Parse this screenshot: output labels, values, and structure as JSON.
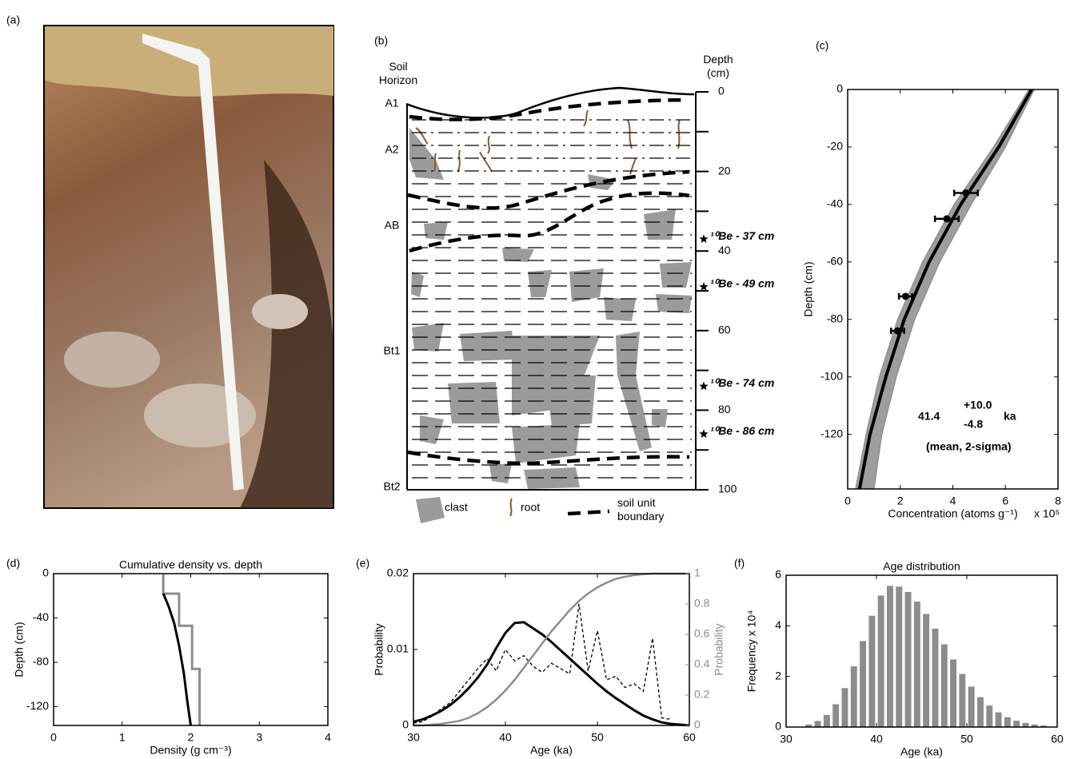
{
  "photo": {
    "label": "(a)"
  },
  "profile": {
    "label": "(b)",
    "horizon_title": "Soil Horizon",
    "depth_title": "Depth (cm)",
    "ylim": [
      0,
      100
    ],
    "yticks": [
      0,
      20,
      40,
      60,
      80,
      100
    ],
    "horizons": [
      "A1",
      "A2",
      "AB",
      "Bt1",
      "Bt2"
    ],
    "samples": [
      {
        "label": "¹⁰Be - 37 cm",
        "depth": 37
      },
      {
        "label": "¹⁰Be - 49 cm",
        "depth": 49
      },
      {
        "label": "¹⁰Be - 74 cm",
        "depth": 74
      },
      {
        "label": "¹⁰Be - 86 cm",
        "depth": 86
      }
    ],
    "legend": [
      "clast",
      "root",
      "soil unit boundary"
    ]
  },
  "chart_data": [
    {
      "type": "line",
      "panel": "(c)",
      "xlabel": "Concentration (atoms g⁻¹)",
      "xscale_label": "x 10⁵",
      "ylabel": "Depth (cm)",
      "xlim": [
        0,
        8
      ],
      "xticks": [
        0,
        2,
        4,
        6,
        8
      ],
      "ylim": [
        -139,
        0
      ],
      "yticks": [
        0,
        -20,
        -40,
        -60,
        -80,
        -100,
        -120
      ],
      "annotation": {
        "value": "41.4",
        "plus": "+10.0",
        "minus": "-4.8",
        "unit": "ka",
        "note": "(mean, 2-sigma)"
      },
      "series": [
        {
          "color": "#8c8c8c",
          "fill_between_next": true,
          "x": [
            6.9,
            5.55,
            4.05,
            2.85,
            1.9,
            1.2,
            0.7,
            0.3
          ],
          "values": [
            0,
            -20,
            -40,
            -60,
            -80,
            -100,
            -120,
            -139
          ]
        },
        {
          "color": "#8c8c8c",
          "x": [
            7.1,
            6.0,
            4.7,
            3.5,
            2.55,
            1.85,
            1.3,
            1.0
          ],
          "values": [
            0,
            -20,
            -40,
            -60,
            -80,
            -100,
            -120,
            -139
          ]
        },
        {
          "color": "#000000",
          "linewidth": 4,
          "x": [
            7.0,
            5.75,
            4.3,
            3.1,
            2.15,
            1.45,
            0.85,
            0.45
          ],
          "values": [
            0,
            -20,
            -40,
            -60,
            -80,
            -100,
            -120,
            -139
          ]
        },
        {
          "color": "#000000",
          "marker": true,
          "x": [
            4.5,
            3.77,
            2.2,
            1.9
          ],
          "xerr": [
            0.45,
            0.45,
            0.25,
            0.25
          ],
          "values": [
            -36,
            -45,
            -72,
            -84
          ]
        }
      ]
    },
    {
      "type": "line",
      "panel": "(d)",
      "title": "Cumulative density vs. depth",
      "xlabel": "Density (g cm⁻³)",
      "ylabel": "Depth (cm)",
      "xlim": [
        0,
        4
      ],
      "xticks": [
        0,
        1,
        2,
        3,
        4
      ],
      "ylim": [
        -137,
        0
      ],
      "yticks": [
        0,
        -40,
        -80,
        -120
      ],
      "series": [
        {
          "color": "#8c8c8c",
          "linewidth": 3,
          "x": [
            1.6,
            1.6,
            1.83,
            1.83,
            2.02,
            2.02,
            2.13,
            2.13
          ],
          "values": [
            0,
            -18,
            -18,
            -47,
            -47,
            -86,
            -86,
            -137
          ]
        },
        {
          "color": "#000000",
          "linewidth": 3,
          "x": [
            1.6,
            1.68,
            1.76,
            1.83,
            1.9,
            1.95,
            2.0
          ],
          "values": [
            -18,
            -30,
            -45,
            -65,
            -90,
            -115,
            -137
          ]
        }
      ]
    },
    {
      "type": "line",
      "panel": "(e)",
      "xlabel": "Age (ka)",
      "ylabel": "Probability",
      "y2label": "Probability",
      "xlim": [
        30,
        60
      ],
      "xticks": [
        30,
        40,
        50,
        60
      ],
      "ylim": [
        0,
        0.02
      ],
      "yticks": [
        0,
        0.01,
        0.02
      ],
      "y2lim": [
        0,
        1
      ],
      "y2ticks": [
        0,
        0.2,
        0.4,
        0.6,
        0.8,
        1
      ],
      "y2color": "#8c8c8c",
      "series": [
        {
          "color": "#000000",
          "dash": true,
          "x": [
            30,
            31,
            32,
            33,
            34,
            35,
            36,
            37,
            38,
            39,
            40,
            41,
            42,
            43,
            44,
            45,
            46,
            47,
            48,
            49,
            50,
            51,
            52,
            53,
            54,
            55,
            56,
            57,
            58
          ],
          "values": [
            0.0003,
            0.0005,
            0.0012,
            0.0022,
            0.003,
            0.0045,
            0.006,
            0.0075,
            0.0088,
            0.0072,
            0.01,
            0.0085,
            0.0092,
            0.0078,
            0.007,
            0.0082,
            0.0075,
            0.0068,
            0.016,
            0.0072,
            0.0125,
            0.006,
            0.0065,
            0.005,
            0.0055,
            0.0045,
            0.0115,
            0.001,
            0.0008
          ]
        },
        {
          "color": "#000000",
          "linewidth": 3,
          "x": [
            30,
            31,
            32,
            33,
            34,
            35,
            36,
            37,
            38,
            39,
            40,
            41,
            42,
            43,
            44,
            45,
            46,
            47,
            48,
            49,
            50,
            51,
            52,
            53,
            54,
            55,
            56,
            57,
            58,
            59,
            60
          ],
          "values": [
            0.0005,
            0.0008,
            0.0013,
            0.0019,
            0.0027,
            0.0037,
            0.0049,
            0.0063,
            0.008,
            0.0102,
            0.0122,
            0.0135,
            0.0136,
            0.0128,
            0.012,
            0.011,
            0.0099,
            0.0088,
            0.0077,
            0.0066,
            0.0055,
            0.0045,
            0.0036,
            0.0028,
            0.002,
            0.0013,
            0.0008,
            0.0004,
            0.0002,
            0.0001,
            0
          ]
        },
        {
          "color": "#8c8c8c",
          "linewidth": 2.5,
          "axis": "y2",
          "x": [
            30,
            31,
            32,
            33,
            34,
            35,
            36,
            37,
            38,
            39,
            40,
            41,
            42,
            43,
            44,
            45,
            46,
            47,
            48,
            49,
            50,
            51,
            52,
            53,
            54,
            55,
            56,
            57,
            58,
            59,
            60
          ],
          "values": [
            0,
            0,
            0.005,
            0.01,
            0.02,
            0.03,
            0.05,
            0.08,
            0.12,
            0.17,
            0.23,
            0.3,
            0.38,
            0.46,
            0.54,
            0.62,
            0.69,
            0.76,
            0.82,
            0.87,
            0.91,
            0.94,
            0.965,
            0.98,
            0.99,
            0.996,
            1,
            1,
            1,
            1,
            1
          ]
        }
      ]
    },
    {
      "type": "histogram",
      "panel": "(f)",
      "title": "Age distribution",
      "xlabel": "Age (ka)",
      "ylabel": "Frequency x 10⁴",
      "color": "#8c8c8c",
      "xlim": [
        30,
        60
      ],
      "xticks": [
        30,
        40,
        50,
        60
      ],
      "ylim": [
        0,
        6
      ],
      "yticks": [
        0,
        2,
        4,
        6
      ],
      "bins": [
        32,
        33,
        34,
        35,
        36,
        37,
        38,
        39,
        40,
        41,
        42,
        43,
        44,
        45,
        46,
        47,
        48,
        49,
        50,
        51,
        52,
        53,
        54,
        55,
        56,
        57,
        58,
        59
      ],
      "values": [
        0.1,
        0.24,
        0.48,
        0.9,
        1.54,
        2.4,
        3.4,
        4.4,
        5.2,
        5.58,
        5.55,
        5.34,
        4.96,
        4.47,
        3.89,
        3.27,
        2.67,
        2.1,
        1.6,
        1.18,
        0.85,
        0.58,
        0.39,
        0.25,
        0.16,
        0.1,
        0.06
      ]
    }
  ]
}
